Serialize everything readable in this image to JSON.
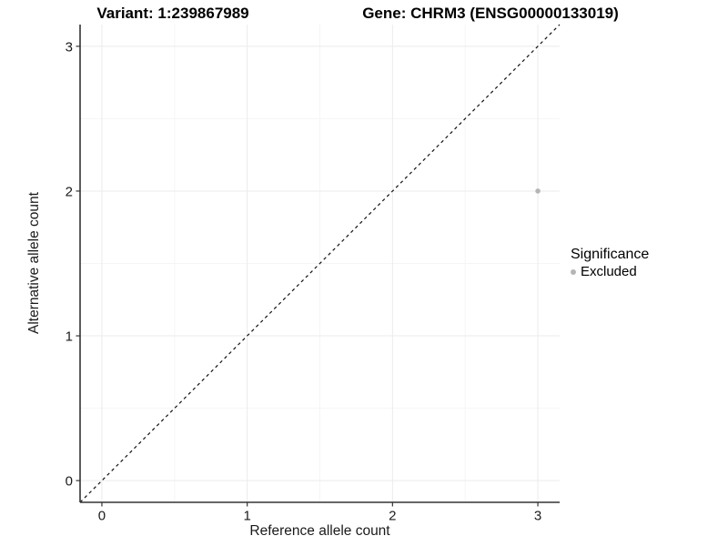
{
  "header": {
    "variant_title": "Variant: 1:239867989",
    "gene_title": "Gene: CHRM3 (ENSG00000133019)"
  },
  "axes": {
    "x_label": "Reference allele count",
    "y_label": "Alternative allele count"
  },
  "legend": {
    "title": "Significance",
    "items": [
      {
        "label": "Excluded",
        "color": "#b5b5b5"
      }
    ]
  },
  "chart_data": {
    "type": "scatter",
    "x": {
      "label": "Reference allele count",
      "ticks": [
        0,
        1,
        2,
        3
      ],
      "minor_ticks": [
        0.5,
        1.5,
        2.5
      ],
      "range": [
        -0.15,
        3.15
      ]
    },
    "y": {
      "label": "Alternative allele count",
      "ticks": [
        0,
        1,
        2,
        3
      ],
      "minor_ticks": [
        0.5,
        1.5,
        2.5
      ],
      "range": [
        -0.15,
        3.15
      ]
    },
    "series": [
      {
        "name": "Excluded",
        "color": "#b5b5b5",
        "points": [
          {
            "x": 3,
            "y": 2
          }
        ]
      }
    ],
    "reference_line": {
      "type": "identity",
      "style": "dashed",
      "color": "#111111",
      "from": [
        -0.15,
        -0.15
      ],
      "to": [
        3.15,
        3.15
      ]
    },
    "grid": {
      "show": true,
      "major_color": "#ebebeb",
      "minor_color": "#f5f5f5"
    },
    "axis_color": "#333333",
    "background": "#ffffff",
    "legend_position": "right",
    "point_radius_px": 2.8
  }
}
